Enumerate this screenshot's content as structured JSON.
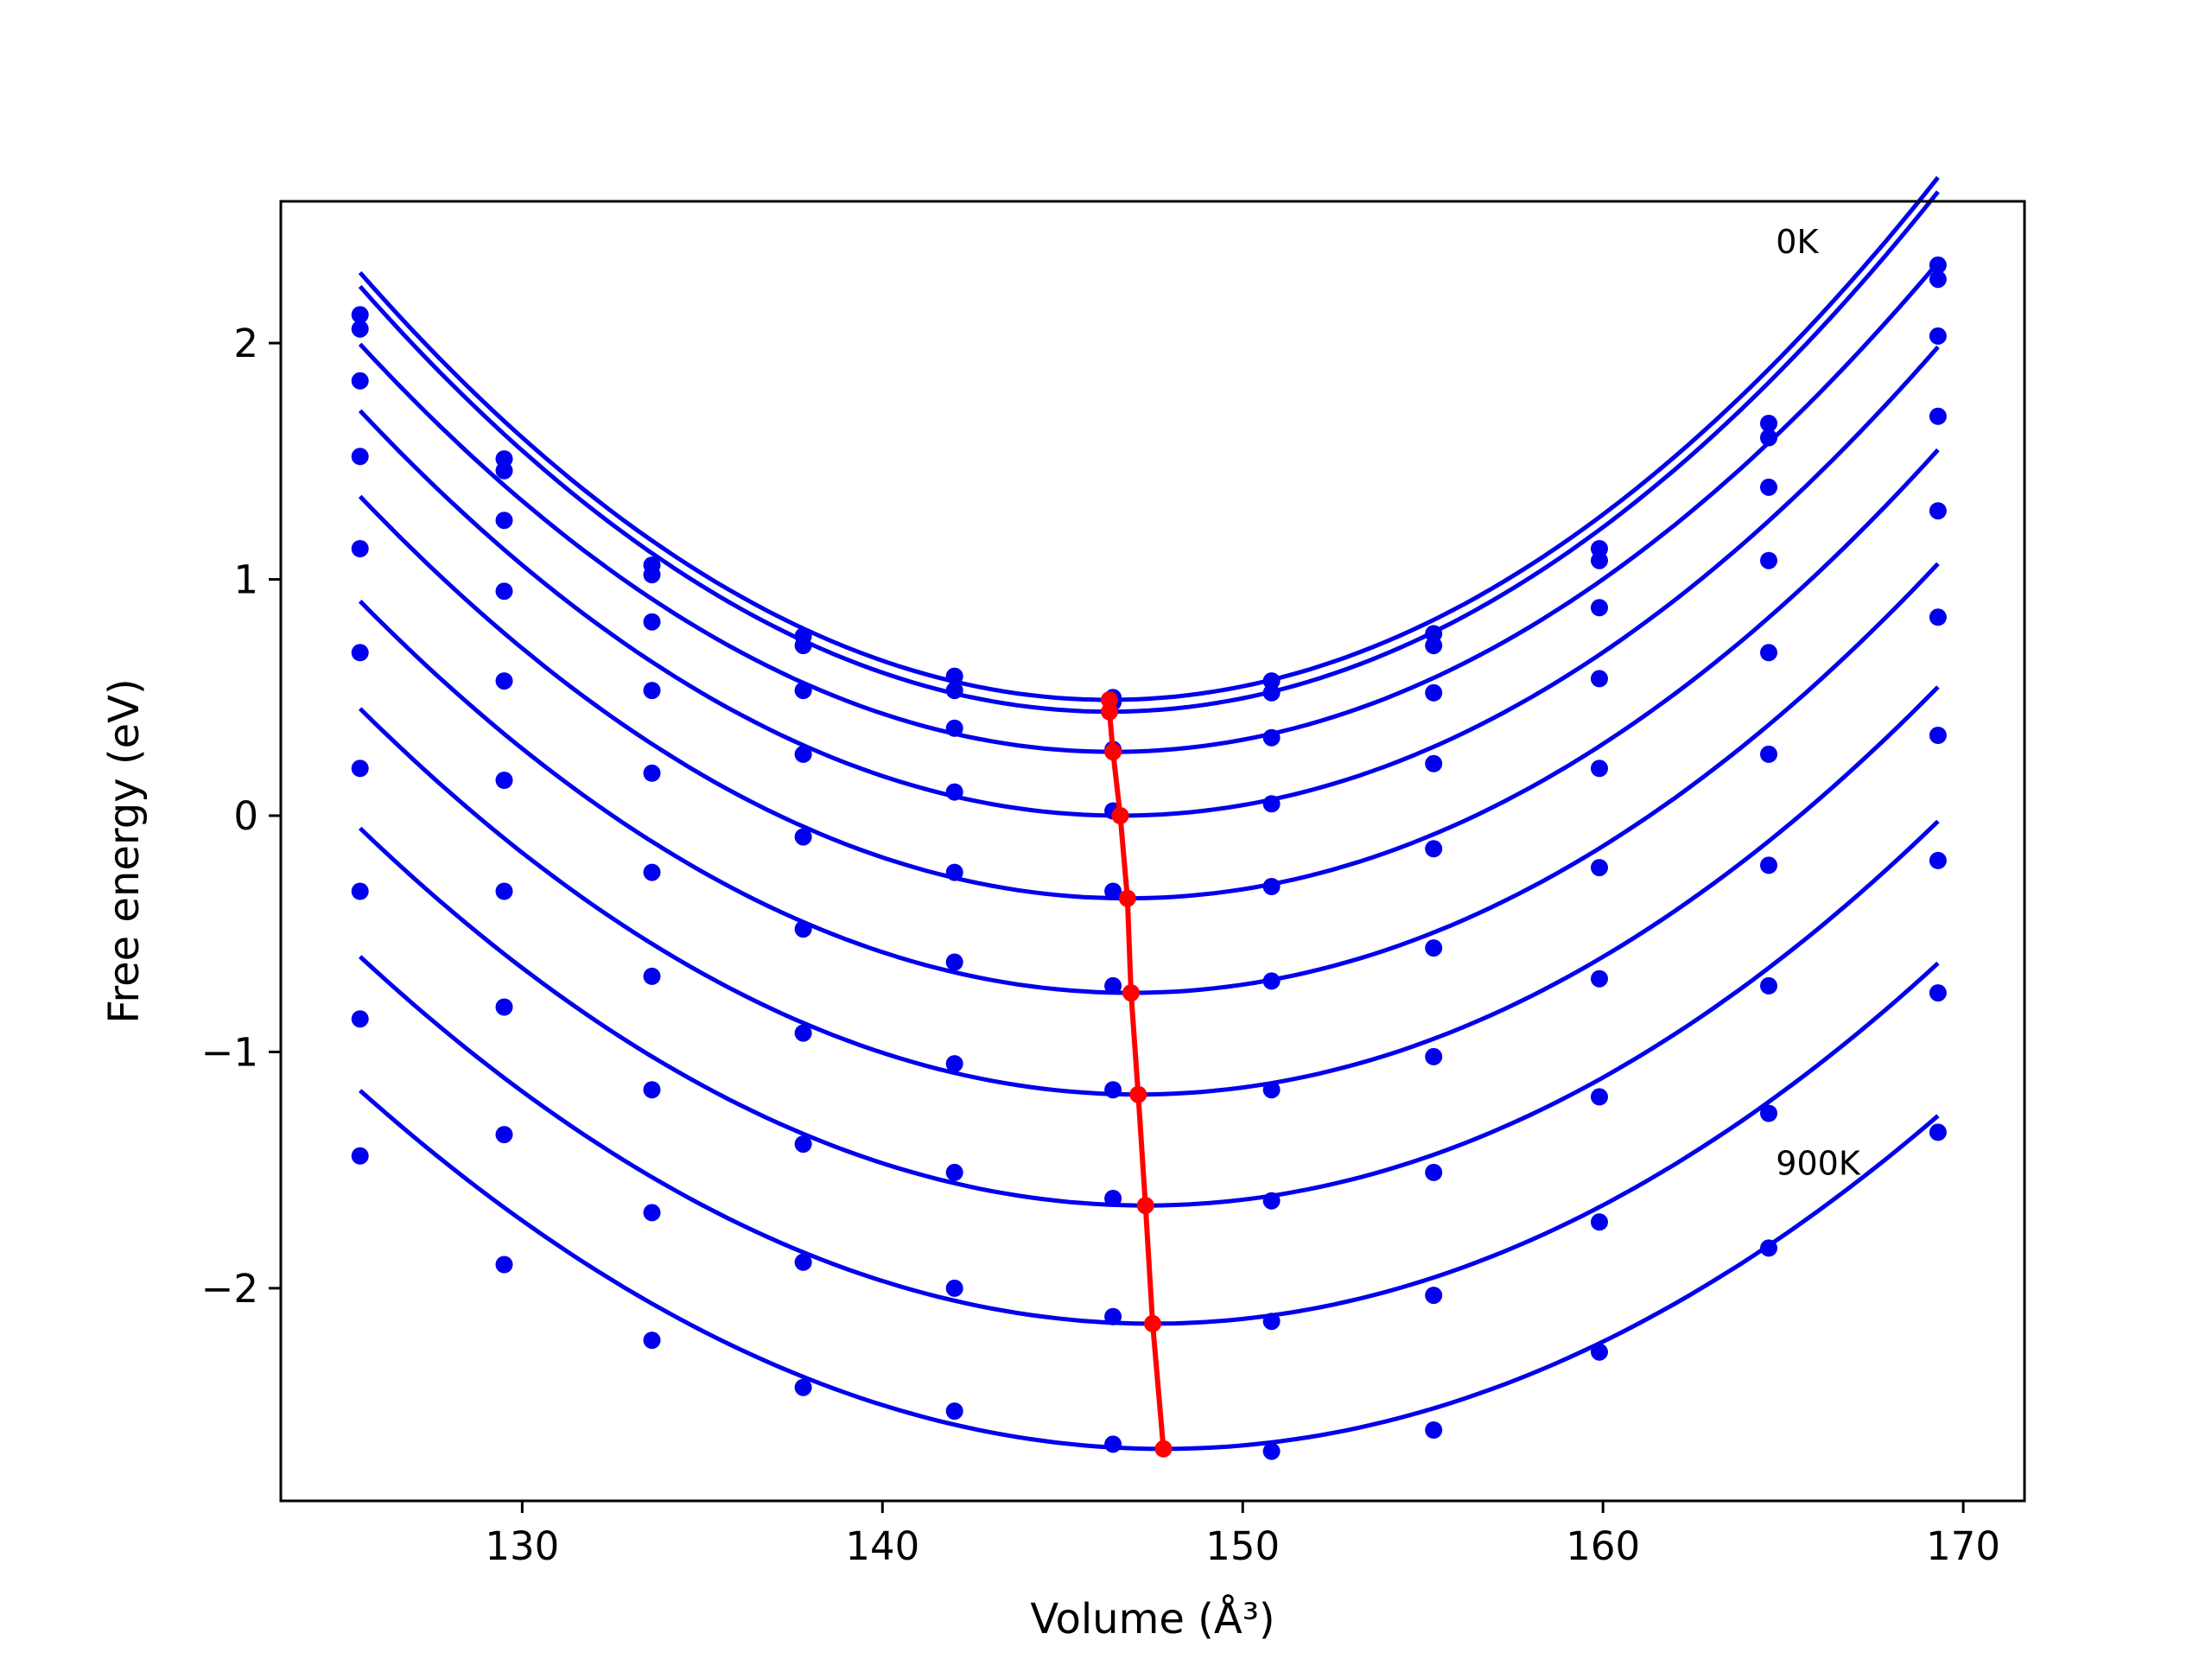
{
  "chart_data": {
    "type": "scatter",
    "title": "",
    "xlabel": "Volume (Å³)",
    "ylabel": "Free energy (eV)",
    "xlim": [
      123.3,
      171.7
    ],
    "ylim": [
      -2.9,
      2.6
    ],
    "xticks": [
      130,
      140,
      150,
      160,
      170
    ],
    "xtick_labels": [
      "130",
      "140",
      "150",
      "160",
      "170"
    ],
    "yticks": [
      -2,
      -1,
      0,
      1,
      2
    ],
    "ytick_labels": [
      "−2",
      "−1",
      "0",
      "1",
      "2"
    ],
    "grid": false,
    "legend": "none",
    "annotations": [
      {
        "text": "0K",
        "x": 164.8,
        "y": 2.38
      },
      {
        "text": "900K",
        "x": 164.8,
        "y": -1.52
      }
    ],
    "x": [
      125.5,
      129.5,
      133.6,
      137.8,
      142.0,
      146.4,
      150.8,
      155.3,
      159.9,
      164.6,
      169.3
    ],
    "series": [
      {
        "temperature_index": 0,
        "values": [
          2.12,
          1.51,
          1.06,
          0.76,
          0.59,
          0.5,
          0.57,
          0.77,
          1.13,
          1.66,
          2.33
        ],
        "curve": {
          "a": 0.00418,
          "v0": 146.3,
          "f0": 0.49
        },
        "minimum": [
          146.3,
          0.49
        ]
      },
      {
        "temperature_index": 1,
        "values": [
          2.06,
          1.46,
          1.02,
          0.72,
          0.53,
          0.48,
          0.52,
          0.72,
          1.08,
          1.6,
          2.27
        ],
        "curve": {
          "a": 0.00416,
          "v0": 146.3,
          "f0": 0.44
        },
        "minimum": [
          146.3,
          0.44
        ]
      },
      {
        "temperature_index": 2,
        "values": [
          1.84,
          1.25,
          0.82,
          0.53,
          0.37,
          0.28,
          0.33,
          0.52,
          0.88,
          1.39,
          2.03
        ],
        "curve": {
          "a": 0.00395,
          "v0": 146.4,
          "f0": 0.27
        },
        "minimum": [
          146.4,
          0.27
        ]
      },
      {
        "temperature_index": 3,
        "values": [
          1.52,
          0.95,
          0.53,
          0.26,
          0.1,
          0.02,
          0.05,
          0.22,
          0.58,
          1.08,
          1.69
        ],
        "curve": {
          "a": 0.00385,
          "v0": 146.6,
          "f0": 0.0
        },
        "minimum": [
          146.6,
          0.0
        ]
      },
      {
        "temperature_index": 4,
        "values": [
          1.13,
          0.57,
          0.18,
          -0.09,
          -0.24,
          -0.32,
          -0.3,
          -0.14,
          0.2,
          0.69,
          1.29
        ],
        "curve": {
          "a": 0.00375,
          "v0": 146.8,
          "f0": -0.35
        },
        "minimum": [
          146.8,
          -0.35
        ]
      },
      {
        "temperature_index": 5,
        "values": [
          0.69,
          0.15,
          -0.24,
          -0.48,
          -0.62,
          -0.72,
          -0.7,
          -0.56,
          -0.22,
          0.26,
          0.84
        ],
        "curve": {
          "a": 0.00362,
          "v0": 146.9,
          "f0": -0.75
        },
        "minimum": [
          146.9,
          -0.75
        ]
      },
      {
        "temperature_index": 6,
        "values": [
          0.2,
          -0.32,
          -0.68,
          -0.92,
          -1.05,
          -1.16,
          -1.16,
          -1.02,
          -0.69,
          -0.21,
          0.34
        ],
        "curve": {
          "a": 0.0035,
          "v0": 147.1,
          "f0": -1.18
        },
        "minimum": [
          147.1,
          -1.18
        ]
      },
      {
        "temperature_index": 7,
        "values": [
          -0.32,
          -0.81,
          -1.16,
          -1.39,
          -1.51,
          -1.62,
          -1.63,
          -1.51,
          -1.19,
          -0.72,
          -0.19
        ],
        "curve": {
          "a": 0.00336,
          "v0": 147.3,
          "f0": -1.65
        },
        "minimum": [
          147.3,
          -1.65
        ]
      },
      {
        "temperature_index": 8,
        "values": [
          -0.86,
          -1.35,
          -1.68,
          -1.89,
          -2.0,
          -2.12,
          -2.14,
          -2.03,
          -1.72,
          -1.26,
          -0.75
        ],
        "curve": {
          "a": 0.00321,
          "v0": 147.5,
          "f0": -2.15
        },
        "minimum": [
          147.5,
          -2.15
        ]
      },
      {
        "temperature_index": 9,
        "values": [
          -1.44,
          -1.9,
          -2.22,
          -2.42,
          -2.52,
          -2.66,
          -2.69,
          -2.6,
          -2.27,
          -1.83,
          -1.34
        ],
        "curve": {
          "a": 0.00305,
          "v0": 147.8,
          "f0": -2.68
        },
        "minimum": [
          147.8,
          -2.68
        ]
      }
    ],
    "minima_line": {
      "x": [
        146.3,
        146.3,
        146.4,
        146.6,
        146.8,
        146.9,
        147.1,
        147.3,
        147.5,
        147.8
      ],
      "y": [
        0.49,
        0.44,
        0.27,
        0.0,
        -0.35,
        -0.75,
        -1.18,
        -1.65,
        -2.15,
        -2.68
      ]
    },
    "colors": {
      "curves": "#0000ee",
      "points": "#0000ee",
      "minima": "#ff0000",
      "axes": "#000000"
    }
  }
}
